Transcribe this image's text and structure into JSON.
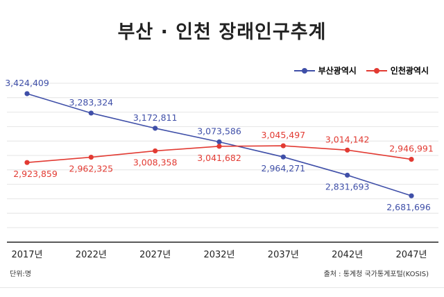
{
  "chart_data": {
    "type": "line",
    "title": "부산 · 인천 장래인구추계",
    "categories": [
      "2017년",
      "2022년",
      "2027년",
      "2032년",
      "2037년",
      "2042년",
      "2047년"
    ],
    "series": [
      {
        "name": "부산광역시",
        "color": "#3f4fa8",
        "values": [
          3424409,
          3283324,
          3172811,
          3073586,
          2964271,
          2831693,
          2681696
        ],
        "labels": [
          "3,424,409",
          "3,283,324",
          "3,172,811",
          "3,073,586",
          "2,964,271",
          "2,831,693",
          "2,681,696"
        ]
      },
      {
        "name": "인천광역시",
        "color": "#e23a32",
        "values": [
          2923859,
          2962325,
          3008358,
          3041682,
          3045497,
          3014142,
          2946991
        ],
        "labels": [
          "2,923,859",
          "2,962,325",
          "3,008,358",
          "3,041,682",
          "3,045,497",
          "3,014,142",
          "2,946,991"
        ]
      }
    ],
    "ylim": [
      2400000,
      3500000
    ],
    "grid": true,
    "legend_position": "top-right"
  },
  "footer": {
    "unit": "단위:명",
    "source": "출처 : 통계청 국가통계포털(KOSIS)"
  }
}
